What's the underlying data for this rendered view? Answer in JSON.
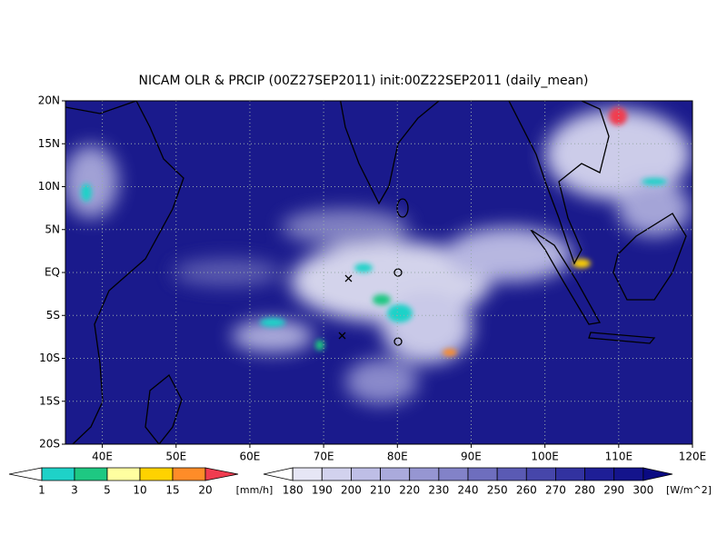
{
  "title": "NICAM OLR & PRCIP (00Z27SEP2011) init:00Z22SEP2011 (daily_mean)",
  "map": {
    "lon_labels": [
      "40E",
      "50E",
      "60E",
      "70E",
      "80E",
      "90E",
      "100E",
      "110E",
      "120E"
    ],
    "lat_labels": [
      "20N",
      "15N",
      "10N",
      "5N",
      "EQ",
      "5S",
      "10S",
      "15S",
      "20S"
    ]
  },
  "precip_colorbar": {
    "labels": [
      "1",
      "3",
      "5",
      "10",
      "15",
      "20"
    ],
    "unit": "[mm/h]",
    "colors": [
      "#ffffff",
      "#1ed2c8",
      "#1ec882",
      "#ffffa0",
      "#ffd200",
      "#ff8c28",
      "#f03c50"
    ]
  },
  "olr_colorbar": {
    "labels": [
      "180",
      "190",
      "200",
      "210",
      "220",
      "230",
      "240",
      "250",
      "260",
      "270",
      "280",
      "290",
      "300"
    ],
    "unit": "[W/m^2]",
    "colors": [
      "#ffffff",
      "#e6e6f5",
      "#d2d2ee",
      "#bebee6",
      "#aaaadc",
      "#9696d2",
      "#8282c8",
      "#6e6ebe",
      "#5a5ab4",
      "#4646aa",
      "#3232a0",
      "#1e1e96",
      "#14148c",
      "#0a0a82"
    ]
  }
}
